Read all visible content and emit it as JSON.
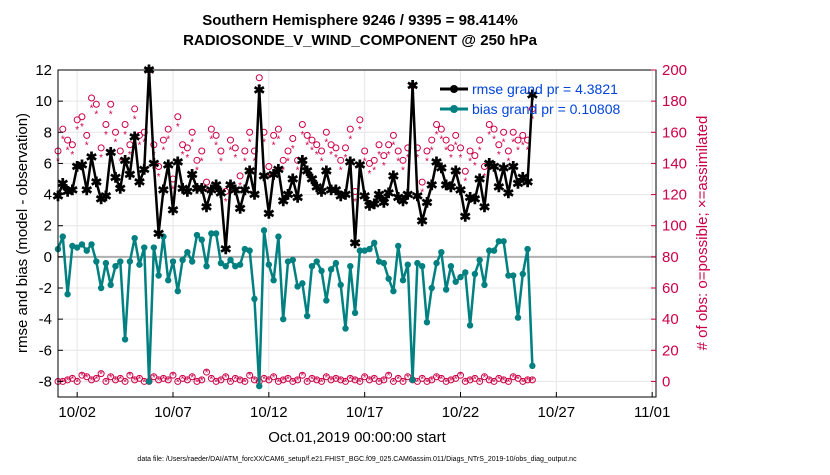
{
  "chart_data": {
    "type": "line",
    "title_line1": "Southern Hemisphere 9246 / 9395 = 98.414%",
    "title_line2": "RADIOSONDE_V_WIND_COMPONENT @ 250 hPa",
    "xlabel": "Oct.01,2019 00:00:00 start",
    "ylabel_left": "rmse and bias (model - observation)",
    "ylabel_right": "# of obs: o=possible; ×=assimilated",
    "footer": "data file: /Users/raeder/DAI/ATM_forcXX/CAM6_setup/f.e21.FHIST_BGC.f09_025.CAM6assim.011/Diags_NTrS_2019-10/obs_diag_output.nc",
    "x_ticks": [
      {
        "x": 2,
        "label": "10/02"
      },
      {
        "x": 7,
        "label": "10/07"
      },
      {
        "x": 12,
        "label": "10/12"
      },
      {
        "x": 17,
        "label": "10/17"
      },
      {
        "x": 22,
        "label": "10/22"
      },
      {
        "x": 27,
        "label": "10/27"
      },
      {
        "x": 32,
        "label": "11/01"
      }
    ],
    "xlim": [
      1.0,
      32.2
    ],
    "ylim_left": [
      -9,
      12
    ],
    "yticks_left": [
      -8,
      -6,
      -4,
      -2,
      0,
      2,
      4,
      6,
      8,
      10,
      12
    ],
    "ylim_right": [
      -10,
      200
    ],
    "yticks_right": [
      0,
      20,
      40,
      60,
      80,
      100,
      120,
      140,
      160,
      180,
      200
    ],
    "colors": {
      "rmse": "#000000",
      "bias": "#008080",
      "obs": "#cc0044",
      "zero_line": "#b0b0b0",
      "legend_text": "#0044dd"
    },
    "series": [
      {
        "name": "rmse grand pr = 4.3821",
        "axis": "left",
        "x0": 1.0,
        "dx": 0.25,
        "values": [
          3.9,
          4.7,
          4.2,
          4.3,
          5.8,
          5.9,
          4.3,
          6.4,
          4.8,
          3.7,
          3.9,
          6.7,
          5.1,
          4.4,
          6.2,
          5.3,
          7.7,
          4.8,
          5.6,
          12.0,
          6.0,
          1.5,
          4.3,
          5.9,
          3.0,
          6.1,
          4.4,
          4.2,
          5.3,
          4.4,
          4.4,
          3.2,
          4.3,
          4.6,
          4.1,
          0.5,
          4.6,
          4.3,
          3.1,
          4.3,
          5.5,
          4.0,
          10.7,
          5.2,
          2.8,
          5.3,
          5.6,
          3.6,
          4.0,
          5.0,
          3.8,
          6.2,
          5.5,
          5.0,
          4.5,
          4.2,
          5.5,
          4.3,
          4.3,
          3.9,
          4.0,
          6.1,
          0.9,
          5.9,
          3.9,
          3.3,
          3.4,
          4.0,
          3.5,
          4.1,
          5.2,
          3.8,
          3.6,
          4.0,
          11.0,
          3.9,
          2.3,
          3.5,
          4.6,
          6.1,
          5.7,
          4.6,
          4.5,
          5.5,
          4.3,
          2.6,
          3.8,
          3.7,
          5.0,
          3.2,
          6.0,
          5.8,
          4.5,
          5.7,
          4.1,
          5.8,
          4.7,
          5.1,
          4.8,
          10.4
        ]
      },
      {
        "name": "bias grand pr = 0.10808",
        "axis": "left",
        "x0": 1.0,
        "dx": 0.25,
        "values": [
          0.5,
          1.3,
          -2.4,
          0.7,
          0.6,
          0.8,
          0.4,
          0.8,
          -0.3,
          -2.0,
          -0.4,
          -1.8,
          -0.6,
          -0.3,
          -5.3,
          -0.3,
          1.2,
          -0.5,
          0.6,
          -8.0,
          0.6,
          -1.2,
          1.3,
          -1.5,
          -0.3,
          -2.2,
          -0.2,
          0.3,
          -0.3,
          1.4,
          1.1,
          -0.6,
          1.5,
          1.5,
          -0.4,
          -0.6,
          -0.2,
          -0.6,
          -0.5,
          0.5,
          0.4,
          -2.7,
          -8.3,
          1.7,
          -0.5,
          -1.5,
          1.3,
          -4.0,
          -0.3,
          -0.2,
          -1.9,
          -1.7,
          -3.8,
          -0.6,
          -0.3,
          -0.9,
          -2.8,
          -0.8,
          -0.4,
          -1.8,
          -4.6,
          -0.6,
          -3.6,
          0.4,
          0.4,
          0.5,
          0.9,
          -0.3,
          -0.4,
          -1.4,
          -2.2,
          0.7,
          -1.5,
          -0.5,
          -7.9,
          -0.4,
          -0.6,
          -4.2,
          -2.0,
          -0.4,
          0.3,
          -2.1,
          -0.6,
          -1.6,
          -1.3,
          -1.0,
          -4.4,
          -1.1,
          -0.2,
          -1.8,
          0.4,
          0.4,
          1.0,
          1.0,
          -1.2,
          -1.2,
          -3.9,
          -1.1,
          0.5,
          -7.0
        ]
      },
      {
        "name": "possible",
        "axis": "right",
        "x0": 1.0,
        "dx": 0.25,
        "values": [
          148,
          162,
          155,
          152,
          168,
          170,
          158,
          182,
          178,
          150,
          165,
          178,
          160,
          148,
          165,
          152,
          175,
          158,
          160,
          200,
          152,
          138,
          155,
          162,
          130,
          170,
          152,
          150,
          160,
          142,
          148,
          128,
          162,
          158,
          148,
          122,
          155,
          150,
          132,
          148,
          160,
          148,
          195,
          160,
          138,
          158,
          162,
          142,
          148,
          156,
          142,
          165,
          158,
          155,
          152,
          148,
          160,
          152,
          150,
          142,
          150,
          162,
          122,
          168,
          148,
          140,
          142,
          152,
          145,
          152,
          158,
          148,
          142,
          150,
          190,
          150,
          128,
          148,
          155,
          165,
          162,
          155,
          150,
          158,
          150,
          135,
          148,
          145,
          155,
          138,
          165,
          162,
          152,
          160,
          148,
          160,
          155,
          158,
          155,
          175
        ]
      },
      {
        "name": "assimilated",
        "axis": "right",
        "x0": 1.0,
        "dx": 0.25,
        "values": [
          142,
          156,
          149,
          146,
          162,
          164,
          152,
          176,
          172,
          144,
          159,
          172,
          154,
          142,
          159,
          146,
          169,
          152,
          154,
          194,
          146,
          132,
          149,
          156,
          124,
          164,
          146,
          144,
          154,
          136,
          142,
          122,
          156,
          152,
          142,
          116,
          149,
          144,
          126,
          142,
          154,
          142,
          189,
          154,
          132,
          152,
          156,
          136,
          142,
          150,
          136,
          159,
          152,
          149,
          146,
          142,
          154,
          146,
          144,
          136,
          144,
          156,
          116,
          162,
          142,
          134,
          136,
          146,
          139,
          146,
          152,
          142,
          136,
          144,
          184,
          144,
          122,
          142,
          149,
          159,
          156,
          149,
          144,
          152,
          144,
          129,
          142,
          139,
          149,
          132,
          159,
          156,
          146,
          154,
          142,
          154,
          149,
          152,
          149,
          169
        ]
      },
      {
        "name": "possible-low",
        "axis": "right",
        "x0": 1.0,
        "dx": 0.25,
        "values": [
          0,
          0,
          1,
          2,
          0,
          4,
          3,
          1,
          2,
          5,
          0,
          3,
          1,
          2,
          0,
          4,
          1,
          2,
          0,
          0,
          3,
          1,
          2,
          1,
          4,
          0,
          2,
          1,
          3,
          0,
          1,
          6,
          2,
          0,
          1,
          3,
          0,
          2,
          1,
          0,
          4,
          1,
          0,
          2,
          1,
          3,
          0,
          1,
          2,
          0,
          1,
          4,
          0,
          2,
          1,
          0,
          3,
          1,
          2,
          1,
          0,
          2,
          1,
          0,
          3,
          1,
          2,
          0,
          1,
          4,
          0,
          2,
          0,
          3,
          1,
          0,
          2,
          0,
          1,
          3,
          2,
          0,
          1,
          2,
          4,
          0,
          1,
          2,
          0,
          3,
          1,
          0,
          2,
          1,
          0,
          3,
          2,
          0,
          1,
          1
        ]
      },
      {
        "name": "assimilated-low",
        "axis": "right",
        "x0": 1.0,
        "dx": 0.25,
        "values": [
          0,
          0,
          1,
          2,
          0,
          4,
          3,
          1,
          2,
          5,
          0,
          3,
          1,
          2,
          0,
          4,
          1,
          2,
          0,
          0,
          3,
          1,
          2,
          1,
          4,
          0,
          2,
          1,
          3,
          0,
          1,
          6,
          2,
          0,
          1,
          3,
          0,
          2,
          1,
          0,
          4,
          1,
          0,
          2,
          1,
          3,
          0,
          1,
          2,
          0,
          1,
          4,
          0,
          2,
          1,
          0,
          3,
          1,
          2,
          1,
          0,
          2,
          1,
          0,
          3,
          1,
          2,
          0,
          1,
          4,
          0,
          2,
          0,
          3,
          1,
          0,
          2,
          0,
          1,
          3,
          2,
          0,
          1,
          2,
          4,
          0,
          1,
          2,
          0,
          3,
          1,
          0,
          2,
          1,
          0,
          3,
          2,
          0,
          1,
          1
        ]
      }
    ],
    "legend_position": "top-right"
  }
}
